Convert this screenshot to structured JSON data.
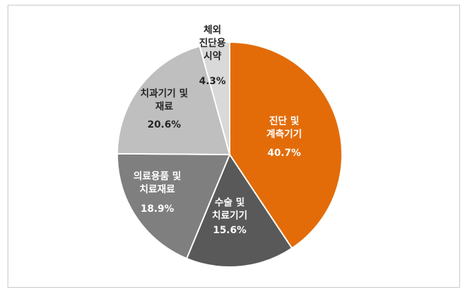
{
  "chart_data": {
    "type": "pie",
    "title": "",
    "start": "12 o'clock, clockwise",
    "slices": [
      {
        "label": [
          "진단 및",
          "계측기기"
        ],
        "value": 40.7,
        "pct_text": "40.7%",
        "color": "#e36c09",
        "text_color": "#ffffff"
      },
      {
        "label": [
          "수술 및",
          "치료기기"
        ],
        "value": 15.6,
        "pct_text": "15.6%",
        "color": "#595959",
        "text_color": "#ffffff"
      },
      {
        "label": [
          "의료용품 및",
          "치료재료"
        ],
        "value": 18.9,
        "pct_text": "18.9%",
        "color": "#7f7f7f",
        "text_color": "#ffffff"
      },
      {
        "label": [
          "치과기기 및",
          "재료"
        ],
        "value": 20.6,
        "pct_text": "20.6%",
        "color": "#bfbfbf",
        "text_color": "#262626"
      },
      {
        "label": [
          "체외",
          "진단용",
          "시약"
        ],
        "value": 4.3,
        "pct_text": "4.3%",
        "color": "#d9d9d9",
        "text_color": "#262626"
      }
    ]
  }
}
